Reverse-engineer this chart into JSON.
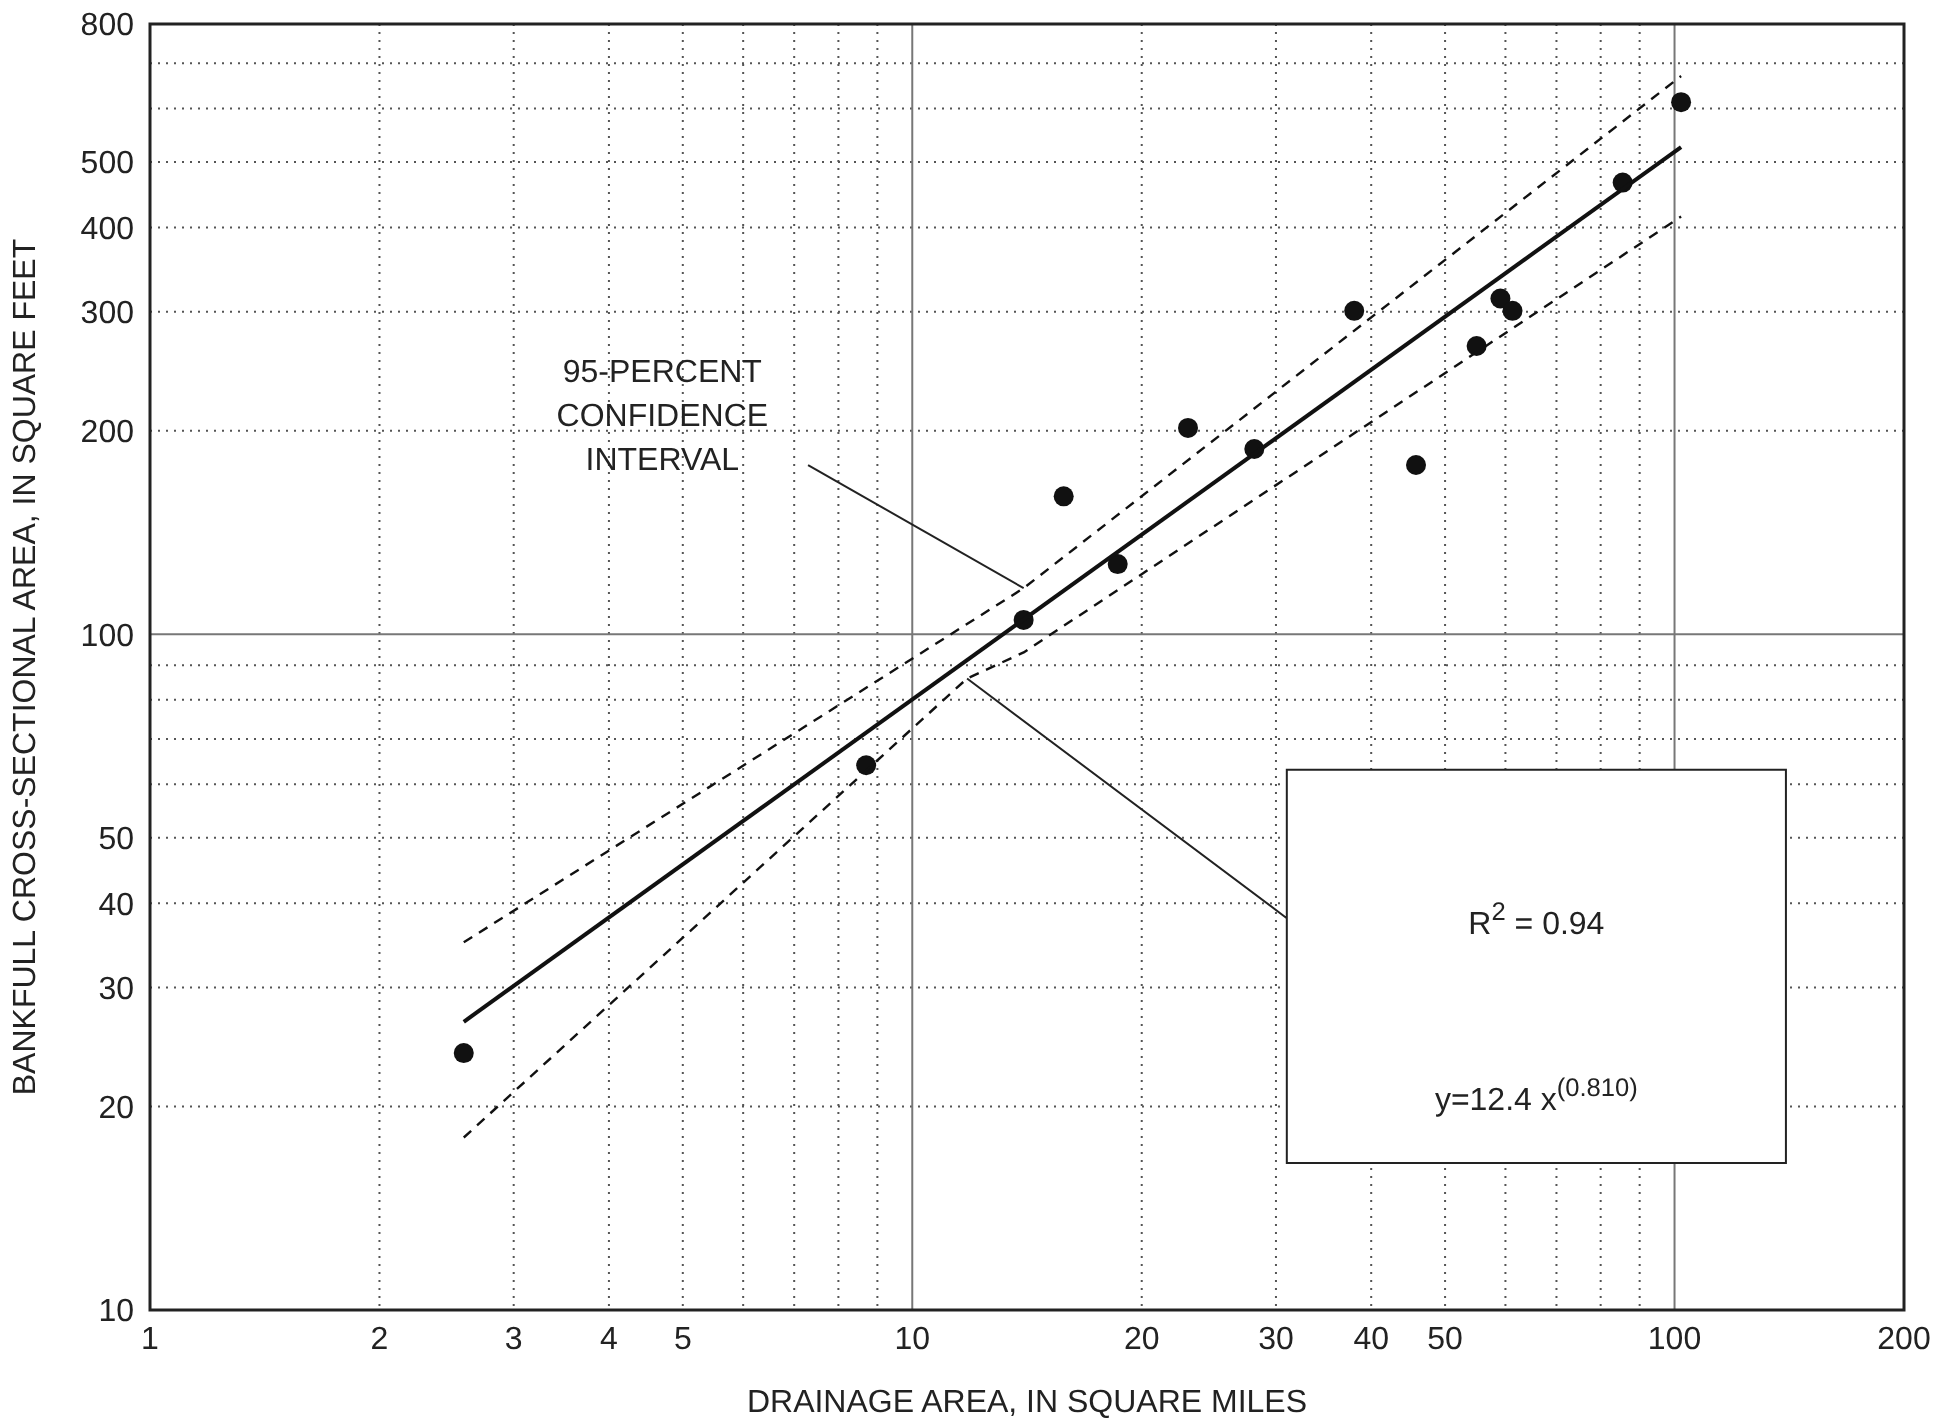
{
  "chart_data": {
    "type": "scatter",
    "xlabel": "DRAINAGE AREA, IN SQUARE MILES",
    "ylabel": "BANKFULL CROSS-SECTIONAL AREA, IN SQUARE FEET",
    "log": "xy",
    "grid": true,
    "legend": false,
    "xlim": [
      1,
      200
    ],
    "xticks": [
      1,
      2,
      3,
      4,
      5,
      10,
      20,
      30,
      40,
      50,
      100,
      200
    ],
    "ylim": [
      10,
      800
    ],
    "yticks": [
      10,
      20,
      30,
      40,
      50,
      100,
      200,
      300,
      400,
      500,
      800
    ],
    "series": [
      {
        "type": "scatter",
        "marker": "circle",
        "color": "#111111",
        "x": [
          2.58,
          8.7,
          14.0,
          15.8,
          18.6,
          23,
          28.1,
          38,
          45.8,
          55,
          59.1,
          61.3,
          85.5,
          102
        ],
        "values": [
          24,
          64,
          105,
          160,
          127,
          202,
          188,
          301,
          178,
          267,
          314,
          301,
          466,
          613
        ]
      },
      {
        "type": "line",
        "marker": "none",
        "color": "#111111",
        "line_style": "solid",
        "x": [
          2.58,
          102
        ],
        "values": [
          26.7,
          526
        ]
      },
      {
        "type": "line",
        "color": "#111111",
        "line_style": "dashed",
        "x": [
          2.58,
          14,
          102
        ],
        "values": [
          35,
          117,
          670
        ],
        "marker": "none"
      },
      {
        "type": "line",
        "color": "#111111",
        "line_style": "dashed",
        "x": [
          2.58,
          11.8,
          14,
          102
        ],
        "values": [
          18,
          86,
          94,
          415
        ],
        "marker": "none"
      }
    ],
    "annotations": [
      {
        "text": "95-PERCENT CONFIDENCE INTERVAL",
        "x": 14,
        "y": 117
      },
      "R$^{2}$ = 0.94",
      "y=12.4 x$^{(0.810)}$"
    ]
  }
}
